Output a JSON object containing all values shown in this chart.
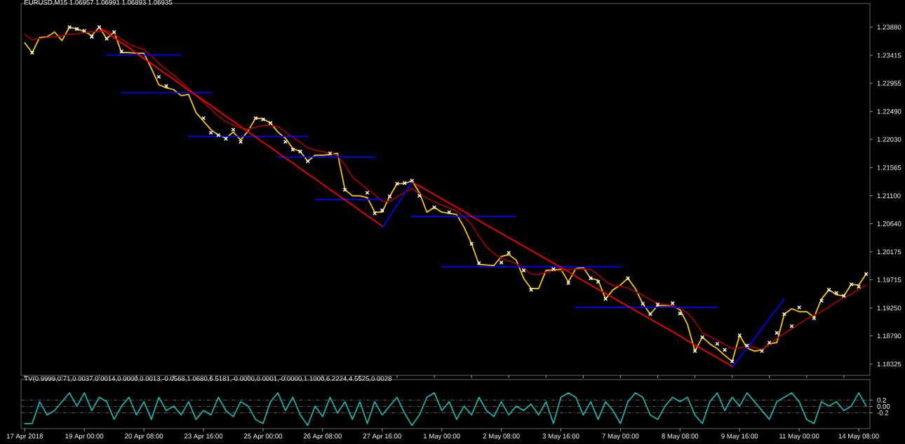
{
  "chart_data": [
    {
      "type": "line",
      "title": "EURUSD,M15 1.06957 1.06991 1.06893 1.06935",
      "categories": [
        null,
        null,
        null,
        null,
        null,
        null,
        null,
        null,
        null,
        null,
        null,
        null,
        null,
        null,
        null,
        null,
        null,
        null,
        null,
        null,
        null,
        null,
        null,
        null,
        null,
        null,
        null,
        null,
        null,
        null,
        null,
        null,
        null,
        null,
        null,
        null,
        null,
        null,
        null,
        null,
        null,
        null,
        null,
        null,
        null,
        null,
        null,
        null,
        null,
        null,
        null,
        null,
        null,
        null,
        null,
        null,
        null,
        null,
        null,
        null,
        null,
        null,
        null,
        null,
        null,
        null,
        null,
        null,
        null,
        null,
        null,
        null,
        null,
        null,
        null,
        null,
        null,
        null,
        null,
        null,
        null,
        null,
        null,
        null,
        null,
        null,
        null,
        null,
        null,
        null,
        null,
        null,
        null,
        null,
        null,
        null,
        null,
        null,
        null,
        null,
        null,
        null,
        null,
        null,
        null,
        null,
        null,
        null,
        null,
        null,
        null,
        null,
        null,
        null
      ],
      "ylim": [
        1.1814,
        1.2427
      ],
      "yticks": [
        1.18325,
        {
          "value": 1.1879,
          "label": "1.18790"
        },
        {
          "value": 1.1925,
          "label": "1.19250"
        },
        1.19715,
        1.20175,
        {
          "value": 1.2064,
          "label": "1.20640"
        },
        {
          "value": 1.211,
          "label": "1.21100"
        },
        1.21565,
        {
          "value": 1.2203,
          "label": "1.22030"
        },
        {
          "value": 1.2249,
          "label": "1.22490"
        },
        1.22955,
        1.23415,
        {
          "value": 1.2388,
          "label": "1.23880"
        }
      ],
      "series": [
        {
          "color": "#ffcc00",
          "values": [
            1.2362,
            1.2346,
            1.2371,
            1.2372,
            1.238,
            1.2366,
            1.2388,
            1.2385,
            1.2381,
            1.2374,
            1.2388,
            1.2369,
            1.238,
            1.2346,
            1.2346,
            1.2345,
            1.2345,
            1.232,
            1.2293,
            1.2288,
            1.2285,
            1.2275,
            1.2277,
            1.2247,
            1.2233,
            1.2219,
            1.221,
            1.2205,
            1.2215,
            1.2202,
            1.2217,
            1.2238,
            1.2237,
            1.223,
            1.2215,
            1.2205,
            1.2188,
            1.2183,
            1.2167,
            1.2177,
            1.2177,
            1.2178,
            1.218,
            1.212,
            1.211,
            1.211,
            1.2107,
            1.2083,
            1.2083,
            1.2109,
            1.213,
            1.213,
            1.2135,
            1.2115,
            1.2083,
            1.2091,
            1.2083,
            1.2081,
            1.2079,
            1.2058,
            1.2031,
            1.1997,
            1.1996,
            1.1995,
            1.201,
            1.2013,
            1.2004,
            1.1974,
            1.1957,
            1.1957,
            1.1987,
            1.1988,
            1.1989,
            1.1968,
            1.199,
            1.1992,
            1.1974,
            1.1971,
            1.194,
            1.1955,
            1.1963,
            1.1974,
            1.1957,
            1.1932,
            1.1915,
            1.1929,
            1.1929,
            1.1929,
            1.1922,
            1.1898,
            1.1854,
            1.1877,
            1.1866,
            1.1858,
            1.1847,
            1.1837,
            1.188,
            1.1859,
            1.1854,
            1.1856,
            1.1866,
            1.1868,
            1.1915,
            1.1924,
            1.1919,
            1.1919,
            1.191,
            1.194,
            1.1955,
            1.1947,
            1.1945,
            1.1964,
            1.1963,
            1.1981
          ]
        },
        {
          "color": "#a00000",
          "values": [
            1.2376,
            1.2367,
            1.2369,
            1.2371,
            1.2372,
            1.2374,
            1.2376,
            1.2377,
            1.2379,
            1.238,
            1.2381,
            1.2382,
            1.2377,
            1.2368,
            1.236,
            1.2355,
            1.2351,
            1.2341,
            1.2328,
            1.2318,
            1.2309,
            1.2298,
            1.2287,
            1.2275,
            1.2264,
            1.2253,
            1.2241,
            1.2233,
            1.2226,
            1.2222,
            1.222,
            1.2223,
            1.2226,
            1.2226,
            1.2224,
            1.2215,
            1.2206,
            1.2198,
            1.2189,
            1.2185,
            1.2183,
            1.218,
            1.2176,
            1.2161,
            1.2141,
            1.2131,
            1.2121,
            1.2112,
            1.2101,
            1.2101,
            1.2108,
            1.2116,
            1.2122,
            1.2113,
            1.2106,
            1.21,
            1.2095,
            1.209,
            1.2085,
            1.2075,
            1.2063,
            1.2043,
            1.2026,
            1.2015,
            1.2007,
            1.2003,
            1.1998,
            1.199,
            1.1981,
            1.198,
            1.1984,
            1.1986,
            1.1987,
            1.1989,
            1.1989,
            1.1989,
            1.1989,
            1.198,
            1.1969,
            1.1962,
            1.1961,
            1.1958,
            1.1952,
            1.1946,
            1.1939,
            1.1932,
            1.1931,
            1.1929,
            1.1924,
            1.1917,
            1.1903,
            1.1884,
            1.1878,
            1.1872,
            1.1865,
            1.1858,
            1.1859,
            1.1862,
            1.186,
            1.1856,
            1.1865,
            1.1875,
            1.1883,
            1.1891,
            1.1899,
            1.1907,
            1.1913,
            1.1919,
            1.1927,
            1.1935,
            1.1942,
            1.1948,
            1.1956,
            1.1963
          ]
        },
        {
          "color": "#0000ff",
          "values": [
            null,
            null,
            null,
            null,
            null,
            null,
            null,
            null,
            null,
            null,
            null,
            1.2342,
            1.2342,
            1.2342,
            1.2342,
            1.2342,
            1.2342,
            1.2342,
            1.2342,
            1.2342,
            1.2342,
            1.2342,
            null,
            null,
            null,
            null,
            null,
            null,
            null,
            null,
            null,
            null,
            null,
            null,
            null,
            null,
            null,
            null,
            null,
            null,
            null,
            null,
            null,
            null,
            null,
            null,
            null,
            null,
            null,
            null,
            null,
            null,
            null,
            null,
            null,
            null,
            null,
            null,
            null,
            null,
            null,
            null,
            null,
            null,
            null,
            null,
            null,
            null,
            null,
            null,
            null,
            null,
            null,
            null,
            null,
            null,
            null,
            null,
            null,
            null,
            null,
            null,
            null,
            null,
            null,
            null,
            null,
            null,
            null,
            null,
            null,
            null,
            null,
            null,
            null,
            null,
            null,
            null,
            null,
            null,
            null,
            null,
            null,
            null,
            null,
            null,
            null,
            null,
            null,
            null,
            null,
            null,
            null,
            null
          ]
        },
        {
          "color": "#0000ff",
          "values": [
            null,
            null,
            null,
            null,
            null,
            null,
            null,
            null,
            null,
            null,
            null,
            null,
            null,
            1.228,
            1.228,
            1.228,
            1.228,
            1.228,
            1.228,
            1.228,
            1.228,
            1.228,
            1.228,
            1.228,
            1.228,
            1.228,
            null,
            null,
            null,
            null,
            null,
            null,
            null,
            null,
            null,
            null,
            null,
            null,
            null,
            null,
            null,
            null,
            null,
            null,
            null,
            null,
            null,
            null,
            null,
            null,
            null,
            null,
            null,
            null,
            null,
            null,
            null,
            null,
            null,
            null,
            null,
            null,
            null,
            null,
            null,
            null,
            null,
            null,
            null,
            null,
            null,
            null,
            null,
            null,
            null,
            null,
            null,
            null,
            null,
            null,
            null,
            null,
            null,
            null,
            null,
            null,
            null,
            null,
            null,
            null,
            null,
            null,
            null,
            null,
            null,
            null,
            null,
            null,
            null,
            null,
            null,
            null,
            null,
            null,
            null,
            null,
            null,
            null,
            null,
            null,
            null,
            null,
            null,
            null
          ]
        },
        {
          "color": "#0000ff",
          "values": [
            null,
            null,
            null,
            null,
            null,
            null,
            null,
            null,
            null,
            null,
            null,
            null,
            null,
            null,
            null,
            null,
            null,
            null,
            null,
            null,
            null,
            null,
            1.2208,
            1.2208,
            1.2208,
            1.2208,
            1.2208,
            1.2208,
            1.2208,
            1.2208,
            1.2208,
            1.2208,
            1.2208,
            1.2208,
            1.2208,
            1.2208,
            1.2208,
            1.2208,
            1.2208,
            null,
            null,
            null,
            null,
            null,
            null,
            null,
            null,
            null,
            null,
            null,
            null,
            null,
            null,
            null,
            null,
            null,
            null,
            null,
            null,
            null,
            null,
            null,
            null,
            null,
            null,
            null,
            null,
            null,
            null,
            null,
            null,
            null,
            null,
            null,
            null,
            null,
            null,
            null,
            null,
            null,
            null,
            null,
            null,
            null,
            null,
            null,
            null,
            null,
            null,
            null,
            null,
            null,
            null,
            null,
            null,
            null,
            null,
            null,
            null,
            null,
            null,
            null,
            null,
            null,
            null,
            null,
            null,
            null,
            null,
            null,
            null,
            null,
            null,
            null
          ]
        },
        {
          "color": "#0000ff",
          "values": [
            null,
            null,
            null,
            null,
            null,
            null,
            null,
            null,
            null,
            null,
            null,
            null,
            null,
            null,
            null,
            null,
            null,
            null,
            null,
            null,
            null,
            null,
            null,
            null,
            null,
            null,
            null,
            null,
            null,
            null,
            null,
            null,
            null,
            null,
            1.2174,
            1.2174,
            1.2174,
            1.2174,
            1.2174,
            1.2174,
            1.2174,
            1.2174,
            1.2174,
            1.2174,
            1.2174,
            1.2174,
            1.2174,
            1.2174,
            null,
            null,
            null,
            null,
            null,
            null,
            null,
            null,
            null,
            null,
            null,
            null,
            null,
            null,
            null,
            null,
            null,
            null,
            null,
            null,
            null,
            null,
            null,
            null,
            null,
            null,
            null,
            null,
            null,
            null,
            null,
            null,
            null,
            null,
            null,
            null,
            null,
            null,
            null,
            null,
            null,
            null,
            null,
            null,
            null,
            null,
            null,
            null,
            null,
            null,
            null,
            null,
            null,
            null,
            null,
            null,
            null,
            null,
            null,
            null,
            null,
            null,
            null,
            null,
            null,
            null
          ]
        },
        {
          "color": "#0000ff",
          "values": [
            null,
            null,
            null,
            null,
            null,
            null,
            null,
            null,
            null,
            null,
            null,
            null,
            null,
            null,
            null,
            null,
            null,
            null,
            null,
            null,
            null,
            null,
            null,
            null,
            null,
            null,
            null,
            null,
            null,
            null,
            null,
            null,
            null,
            null,
            null,
            null,
            null,
            null,
            null,
            1.2104,
            1.2104,
            1.2104,
            1.2104,
            1.2104,
            1.2104,
            1.2104,
            1.2104,
            1.2104,
            1.2104,
            null,
            null,
            null,
            null,
            null,
            null,
            null,
            null,
            null,
            null,
            null,
            null,
            null,
            null,
            null,
            null,
            null,
            null,
            null,
            null,
            null,
            null,
            null,
            null,
            null,
            null,
            null,
            null,
            null,
            null,
            null,
            null,
            null,
            null,
            null,
            null,
            null,
            null,
            null,
            null,
            null,
            null,
            null,
            null,
            null,
            null,
            null,
            null,
            null,
            null,
            null,
            null,
            null,
            null,
            null,
            null,
            null,
            null,
            null,
            null,
            null,
            null,
            null,
            null,
            null
          ]
        },
        {
          "color": "#0000ff",
          "values": [
            null,
            null,
            null,
            null,
            null,
            null,
            null,
            null,
            null,
            null,
            null,
            null,
            null,
            null,
            null,
            null,
            null,
            null,
            null,
            null,
            null,
            null,
            null,
            null,
            null,
            null,
            null,
            null,
            null,
            null,
            null,
            null,
            null,
            null,
            null,
            null,
            null,
            null,
            null,
            null,
            null,
            null,
            null,
            null,
            null,
            null,
            null,
            null,
            null,
            null,
            null,
            null,
            1.2076,
            1.2076,
            1.2076,
            1.2076,
            1.2076,
            1.2076,
            1.2076,
            1.2076,
            1.2076,
            1.2076,
            1.2076,
            1.2076,
            1.2076,
            1.2076,
            1.2076,
            null,
            null,
            null,
            null,
            null,
            null,
            null,
            null,
            null,
            null,
            null,
            null,
            null,
            null,
            null,
            null,
            null,
            null,
            null,
            null,
            null,
            null,
            null,
            null,
            null,
            null,
            null,
            null,
            null,
            null,
            null,
            null,
            null,
            null,
            null,
            null,
            null,
            null,
            null,
            null,
            null,
            null,
            null,
            null,
            null,
            null,
            null
          ]
        },
        {
          "color": "#0000ff",
          "values": [
            null,
            null,
            null,
            null,
            null,
            null,
            null,
            null,
            null,
            null,
            null,
            null,
            null,
            null,
            null,
            null,
            null,
            null,
            null,
            null,
            null,
            null,
            null,
            null,
            null,
            null,
            null,
            null,
            null,
            null,
            null,
            null,
            null,
            null,
            null,
            null,
            null,
            null,
            null,
            null,
            null,
            null,
            null,
            null,
            null,
            null,
            null,
            null,
            null,
            null,
            null,
            null,
            null,
            null,
            null,
            null,
            1.1993,
            1.1993,
            1.1993,
            1.1993,
            1.1993,
            1.1993,
            1.1993,
            1.1993,
            1.1993,
            1.1993,
            1.1993,
            1.1993,
            1.1993,
            1.1993,
            1.1993,
            1.1993,
            1.1993,
            1.1993,
            1.1993,
            1.1993,
            1.1993,
            1.1993,
            1.1993,
            1.1993,
            1.1993,
            null,
            null,
            null,
            null,
            null,
            null,
            null,
            null,
            null,
            null,
            null,
            null,
            null,
            null,
            null,
            null,
            null,
            null,
            null,
            null,
            null,
            null,
            null,
            null,
            null,
            null,
            null,
            null,
            null,
            null,
            null,
            null,
            null
          ]
        },
        {
          "color": "#0000ff",
          "values": [
            null,
            null,
            null,
            null,
            null,
            null,
            null,
            null,
            null,
            null,
            null,
            null,
            null,
            null,
            null,
            null,
            null,
            null,
            null,
            null,
            null,
            null,
            null,
            null,
            null,
            null,
            null,
            null,
            null,
            null,
            null,
            null,
            null,
            null,
            null,
            null,
            null,
            null,
            null,
            null,
            null,
            null,
            null,
            null,
            null,
            null,
            null,
            null,
            null,
            null,
            null,
            null,
            null,
            null,
            null,
            null,
            null,
            null,
            null,
            null,
            null,
            null,
            null,
            null,
            null,
            null,
            null,
            null,
            null,
            null,
            null,
            null,
            null,
            null,
            1.1926,
            1.1926,
            1.1926,
            1.1926,
            1.1926,
            1.1926,
            1.1926,
            1.1926,
            1.1926,
            1.1926,
            1.1926,
            1.1926,
            1.1926,
            1.1926,
            1.1926,
            1.1926,
            1.1926,
            1.1926,
            1.1926,
            1.1926,
            null,
            null,
            null,
            null,
            null,
            null,
            null,
            null,
            null,
            null,
            null,
            null,
            null,
            null,
            null,
            null,
            null,
            null,
            null,
            null
          ]
        },
        {
          "color": "#ff0000",
          "values": [
            null,
            null,
            null,
            null,
            null,
            null,
            null,
            null,
            null,
            null,
            1.2388,
            1.2379,
            1.2371,
            1.2362,
            1.2354,
            1.2345,
            1.2336,
            1.2328,
            1.2319,
            1.231,
            1.2302,
            1.2293,
            1.2284,
            1.2276,
            1.2267,
            1.2259,
            1.225,
            1.2241,
            1.2233,
            1.2224,
            1.2215,
            1.2207,
            1.2198,
            1.219,
            1.2181,
            1.2172,
            1.2164,
            1.2155,
            1.2146,
            1.2138,
            1.2129,
            1.212,
            1.2112,
            1.2103,
            1.2095,
            1.2086,
            1.2077,
            1.2069,
            1.206,
            null,
            null,
            null,
            null,
            null,
            null,
            null,
            null,
            null,
            null,
            null,
            null,
            null,
            null,
            null,
            null,
            null,
            null,
            null,
            null,
            null,
            null,
            null,
            null,
            null,
            null,
            null,
            null,
            null,
            null,
            null,
            null,
            null,
            null,
            null,
            null,
            null,
            null,
            null,
            null,
            null,
            null,
            null,
            null,
            null,
            null,
            null,
            null,
            null,
            null,
            null,
            null,
            null,
            null,
            null,
            null,
            null,
            null,
            null,
            null,
            null,
            null,
            null,
            null,
            null
          ]
        },
        {
          "color": "#ff0000",
          "values": [
            null,
            null,
            null,
            null,
            null,
            null,
            null,
            null,
            null,
            null,
            null,
            null,
            null,
            null,
            null,
            null,
            null,
            null,
            null,
            null,
            null,
            null,
            null,
            null,
            null,
            null,
            null,
            null,
            null,
            null,
            null,
            null,
            null,
            null,
            null,
            null,
            null,
            null,
            null,
            null,
            null,
            null,
            null,
            null,
            null,
            null,
            null,
            null,
            null,
            null,
            null,
            null,
            1.2133,
            1.2126,
            1.2119,
            1.2112,
            1.2105,
            1.2098,
            1.2091,
            1.2084,
            1.2076,
            1.2069,
            1.2062,
            1.2055,
            1.2048,
            1.2041,
            1.2034,
            1.2027,
            1.202,
            1.2013,
            1.2006,
            1.1999,
            1.1992,
            1.1985,
            1.1977,
            1.197,
            1.1963,
            1.1956,
            1.1949,
            1.1942,
            1.1935,
            1.1928,
            1.1921,
            1.1914,
            1.1907,
            1.19,
            1.1893,
            1.1886,
            1.1879,
            1.1871,
            1.1864,
            1.1857,
            1.185,
            1.1843,
            1.1836,
            1.1829,
            null,
            null,
            null,
            null,
            null,
            null,
            null,
            null,
            null,
            null,
            null,
            null,
            null,
            null,
            null,
            null,
            null,
            null
          ]
        },
        {
          "color": "#0000ff",
          "values": [
            null,
            null,
            null,
            null,
            null,
            null,
            null,
            null,
            null,
            null,
            null,
            null,
            null,
            null,
            null,
            null,
            null,
            null,
            null,
            null,
            null,
            null,
            null,
            null,
            null,
            null,
            null,
            null,
            null,
            null,
            null,
            null,
            null,
            null,
            null,
            null,
            null,
            null,
            null,
            null,
            null,
            null,
            null,
            null,
            null,
            null,
            null,
            null,
            1.2057,
            1.2076,
            1.2095,
            1.2114,
            1.2133,
            null,
            null,
            null,
            null,
            null,
            null,
            null,
            null,
            null,
            null,
            null,
            null,
            null,
            null,
            null,
            null,
            null,
            null,
            null,
            null,
            null,
            null,
            null,
            null,
            null,
            null,
            null,
            null,
            null,
            null,
            null,
            null,
            null,
            null,
            null,
            null,
            null,
            null,
            null,
            null,
            null,
            null,
            null,
            null,
            null,
            null,
            null,
            null,
            null,
            null,
            null,
            null,
            null,
            null,
            null,
            null,
            null,
            null,
            null,
            null,
            null
          ]
        },
        {
          "color": "#0000ff",
          "values": [
            null,
            null,
            null,
            null,
            null,
            null,
            null,
            null,
            null,
            null,
            null,
            null,
            null,
            null,
            null,
            null,
            null,
            null,
            null,
            null,
            null,
            null,
            null,
            null,
            null,
            null,
            null,
            null,
            null,
            null,
            null,
            null,
            null,
            null,
            null,
            null,
            null,
            null,
            null,
            null,
            null,
            null,
            null,
            null,
            null,
            null,
            null,
            null,
            null,
            null,
            null,
            null,
            null,
            null,
            null,
            null,
            null,
            null,
            null,
            null,
            null,
            null,
            null,
            null,
            null,
            null,
            null,
            null,
            null,
            null,
            null,
            null,
            null,
            null,
            null,
            null,
            null,
            null,
            null,
            null,
            null,
            null,
            null,
            null,
            null,
            null,
            null,
            null,
            null,
            null,
            null,
            null,
            null,
            null,
            null,
            1.1827,
            1.1843,
            1.1859,
            1.1875,
            1.1892,
            1.1908,
            1.1924,
            1.194,
            null,
            null,
            null,
            null,
            null,
            null,
            null,
            null,
            null,
            null,
            null
          ]
        },
        {
          "type": "scatter",
          "marker": "cross",
          "color": "#ffffff",
          "values": [
            null,
            1.2346,
            null,
            null,
            null,
            null,
            1.2388,
            1.2385,
            1.2382,
            1.2372,
            1.2388,
            1.2369,
            1.238,
            1.2348,
            null,
            null,
            null,
            null,
            1.2306,
            1.2291,
            null,
            null,
            null,
            null,
            1.2238,
            1.2214,
            1.221,
            1.2204,
            1.2219,
            1.2199,
            null,
            1.2238,
            1.2236,
            1.223,
            null,
            1.2199,
            1.2186,
            1.2183,
            1.2167,
            null,
            null,
            1.218,
            null,
            1.212,
            null,
            null,
            1.2115,
            1.2081,
            1.2086,
            1.2109,
            1.213,
            1.2131,
            1.2135,
            1.211,
            null,
            1.2091,
            null,
            1.2083,
            null,
            null,
            1.2031,
            1.1999,
            null,
            null,
            1.2,
            1.2016,
            null,
            1.1987,
            1.1955,
            null,
            null,
            1.1989,
            null,
            1.1966,
            null,
            null,
            1.1974,
            1.1968,
            1.194,
            null,
            null,
            1.1974,
            null,
            1.1932,
            1.1915,
            1.1931,
            null,
            1.1933,
            1.1916,
            null,
            1.1854,
            1.1877,
            null,
            1.1866,
            1.1856,
            1.1837,
            1.188,
            1.1863,
            null,
            1.1854,
            1.1868,
            1.1884,
            1.1915,
            1.1895,
            1.1926,
            null,
            1.1908,
            1.1937,
            1.1955,
            1.195,
            1.1945,
            1.1964,
            1.196,
            1.1981
          ]
        }
      ]
    },
    {
      "type": "line",
      "title": "TV(0.9999,0.71,0.0037,0.0014,0.0000,0.0013,-0.0568,1.0680,6.5181,-0.0000,0.0001,-0.0000,1.1000,6.2224,4.5525,0.0028",
      "categories": [
        "17 Apr 2018",
        null,
        null,
        null,
        null,
        null,
        null,
        null,
        "19 Apr 00:00",
        null,
        null,
        null,
        null,
        null,
        null,
        null,
        "20 Apr 08:00",
        null,
        null,
        null,
        null,
        null,
        null,
        null,
        "23 Apr 16:00",
        null,
        null,
        null,
        null,
        null,
        null,
        null,
        "25 Apr 00:00",
        null,
        null,
        null,
        null,
        null,
        null,
        null,
        "26 Apr 08:00",
        null,
        null,
        null,
        null,
        null,
        null,
        null,
        "27 Apr 16:00",
        null,
        null,
        null,
        null,
        null,
        null,
        null,
        "1 May 00:00",
        null,
        null,
        null,
        null,
        null,
        null,
        null,
        "2 May 08:00",
        null,
        null,
        null,
        null,
        null,
        null,
        null,
        "3 May 16:00",
        null,
        null,
        null,
        null,
        null,
        null,
        null,
        "7 May 00:00",
        null,
        null,
        null,
        null,
        null,
        null,
        null,
        "8 May 08:00",
        null,
        null,
        null,
        null,
        null,
        null,
        null,
        "9 May 16:00",
        null,
        null,
        null,
        null,
        null,
        null,
        null,
        "11 May 00:00",
        null,
        null,
        null,
        null,
        null,
        null,
        null,
        "14 May 08:00",
        null
      ],
      "ylim": [
        -0.7,
        0.85
      ],
      "yticks": [
        -0.2,
        {
          "value": 0,
          "label": "0.00"
        },
        0.2
      ],
      "grid": "y",
      "series": [
        {
          "color": "#20b2aa",
          "values": [
            -0.54,
            -0.54,
            0.15,
            -0.27,
            -0.13,
            0.15,
            0.43,
            0.01,
            0.43,
            -0.13,
            0.29,
            0.15,
            -0.41,
            0.01,
            0.29,
            -0.27,
            0.15,
            -0.41,
            0.29,
            -0.13,
            0.01,
            -0.27,
            0.15,
            -0.41,
            -0.13,
            -0.27,
            0.29,
            -0.13,
            -0.32,
            0.15,
            0.01,
            -0.41,
            -0.54,
            0.15,
            0.43,
            -0.13,
            0.29,
            -0.27,
            -0.6,
            0.01,
            -0.32,
            0.29,
            -0.21,
            0.15,
            -0.41,
            0.15,
            -0.54,
            0.15,
            -0.27,
            0.01,
            0.29,
            -0.21,
            -0.6,
            -0.27,
            0.29,
            0.43,
            -0.13,
            0.15,
            -0.41,
            0.01,
            -0.27,
            0.29,
            -0.13,
            -0.32,
            0.15,
            -0.27,
            0.01,
            -0.13,
            0.07,
            -0.27,
            0.15,
            -0.54,
            0.29,
            0.43,
            0.29,
            -0.27,
            0.15,
            -0.41,
            0.15,
            -0.13,
            -0.54,
            0.15,
            0.43,
            0.29,
            -0.27,
            -0.41,
            0.01,
            0.29,
            0.15,
            0.29,
            -0.27,
            -0.54,
            0.15,
            0.43,
            -0.13,
            0.29,
            0.01,
            0.43,
            0.15,
            -0.13,
            -0.41,
            0.15,
            0.29,
            0.43,
            0.15,
            -0.41,
            -0.54,
            0.15,
            0.01,
            0.15,
            -0.13,
            0.01,
            0.43,
            0.01
          ]
        }
      ]
    }
  ]
}
